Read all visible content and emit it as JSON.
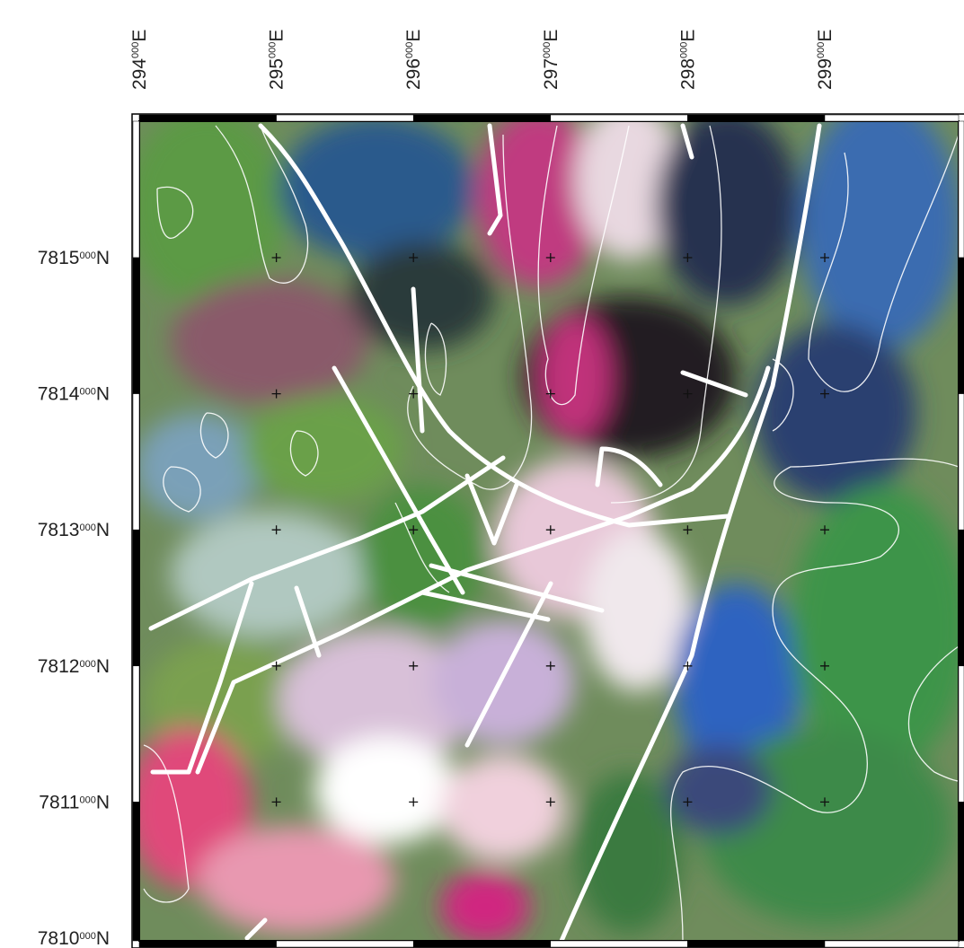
{
  "x_labels": [
    {
      "number": "294",
      "superscript": "000",
      "suffix": "E"
    },
    {
      "number": "295",
      "superscript": "000",
      "suffix": "E"
    },
    {
      "number": "296",
      "superscript": "000",
      "suffix": "E"
    },
    {
      "number": "297",
      "superscript": "000",
      "suffix": "E"
    },
    {
      "number": "298",
      "superscript": "000",
      "suffix": "E"
    },
    {
      "number": "299",
      "superscript": "000",
      "suffix": "E"
    }
  ],
  "y_labels": [
    {
      "number": "7815",
      "superscript": "000",
      "suffix": "N"
    },
    {
      "number": "7814",
      "superscript": "000",
      "suffix": "N"
    },
    {
      "number": "7813",
      "superscript": "000",
      "suffix": "N"
    },
    {
      "number": "7812",
      "superscript": "000",
      "suffix": "N"
    },
    {
      "number": "7811",
      "superscript": "000",
      "suffix": "N"
    },
    {
      "number": "7810",
      "superscript": "000",
      "suffix": "N"
    }
  ]
}
